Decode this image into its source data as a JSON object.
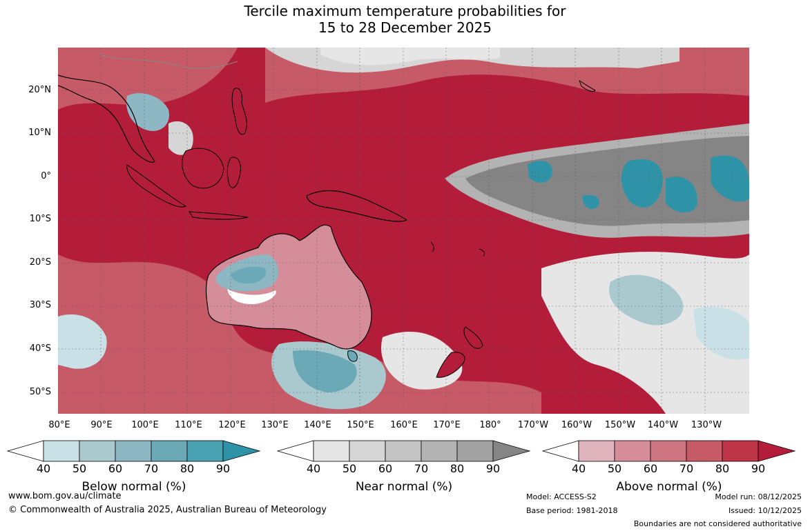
{
  "title": {
    "line1": "Tercile maximum temperature probabilities for",
    "line2": "15 to 28 December 2025"
  },
  "axes": {
    "lat_labels": [
      "20°N",
      "10°N",
      "0°",
      "10°S",
      "20°S",
      "30°S",
      "40°S",
      "50°S"
    ],
    "lon_labels": [
      "80°E",
      "90°E",
      "100°E",
      "110°E",
      "120°E",
      "130°E",
      "140°E",
      "150°E",
      "160°E",
      "170°E",
      "180°",
      "170°W",
      "160°W",
      "150°W",
      "140°W",
      "130°W"
    ]
  },
  "legends": [
    {
      "label": "Below normal (%)",
      "ticks": [
        "40",
        "50",
        "60",
        "70",
        "80",
        "90"
      ],
      "colors": [
        "#ffffff",
        "#c8e0e6",
        "#a9c9cf",
        "#8eb7c4",
        "#6ba9b7",
        "#4aa1b2",
        "#2f93a8"
      ]
    },
    {
      "label": "Near normal (%)",
      "ticks": [
        "40",
        "50",
        "60",
        "70",
        "80",
        "90"
      ],
      "colors": [
        "#ffffff",
        "#e6e6e6",
        "#d6d6d6",
        "#c4c4c4",
        "#b3b3b3",
        "#a2a2a2",
        "#858585"
      ]
    },
    {
      "label": "Above normal (%)",
      "ticks": [
        "40",
        "50",
        "60",
        "70",
        "80",
        "90"
      ],
      "colors": [
        "#ffffff",
        "#e0b4bd",
        "#d48d99",
        "#cc7580",
        "#c65a67",
        "#bf3649",
        "#b41d3a"
      ]
    }
  ],
  "footer": {
    "website": "www.bom.gov.au/climate",
    "copyright": "© Commonwealth of Australia 2025, Australian Bureau of Meteorology",
    "model": "Model: ACCESS-S2",
    "base_period": "Base period: 1981-2018",
    "model_run": "Model run: 08/12/2025",
    "issued": "Issued: 10/12/2025",
    "disclaimer": "Boundaries are not considered authoritative"
  }
}
